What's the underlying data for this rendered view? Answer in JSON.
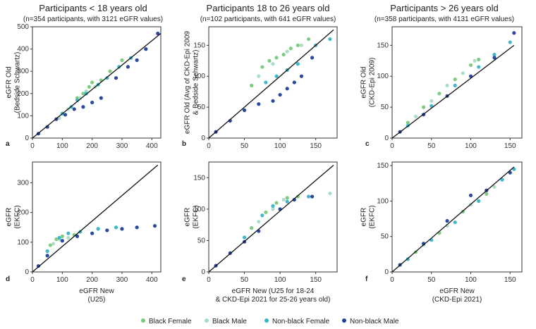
{
  "columns": [
    {
      "title": "Participants < 18 years old",
      "subtitle": "(n=354 participants, with 3121 eGFR values)"
    },
    {
      "title": "Participants 18 to 26 years old",
      "subtitle": "(n=102 participants, with 641 eGFR values)"
    },
    {
      "title": "Participants > 26 years old",
      "subtitle": "(n=358 participants, with 4131 eGFR values)"
    }
  ],
  "legend": [
    {
      "label": "Black Female",
      "color": "#78c87a"
    },
    {
      "label": "Black Male",
      "color": "#a7dcc4"
    },
    {
      "label": "Non-black Female",
      "color": "#37b3c6"
    },
    {
      "label": "Non-black Male",
      "color": "#1f3f9a"
    }
  ],
  "chart_data": [
    {
      "letter": "a",
      "type": "scatter",
      "ylabel": [
        "eGFR Old",
        "(Bedside Schwartz)"
      ],
      "xlabel": [],
      "xlim": [
        0,
        430
      ],
      "ylim": [
        0,
        500
      ],
      "xticks": [
        0,
        100,
        200,
        300,
        400
      ],
      "yticks": [
        0,
        100,
        200,
        300,
        400,
        500
      ],
      "series": [
        {
          "name": "Black Female",
          "points": [
            [
              150,
              180
            ],
            [
              170,
              200
            ],
            [
              190,
              230
            ],
            [
              200,
              250
            ],
            [
              230,
              260
            ],
            [
              260,
              300
            ],
            [
              300,
              350
            ]
          ]
        },
        {
          "name": "Black Male",
          "points": [
            [
              90,
              90
            ],
            [
              120,
              130
            ],
            [
              160,
              180
            ],
            [
              180,
              210
            ],
            [
              210,
              230
            ]
          ]
        },
        {
          "name": "Non-black Female",
          "points": [
            [
              100,
              110
            ],
            [
              130,
              140
            ],
            [
              150,
              170
            ],
            [
              180,
              200
            ],
            [
              220,
              240
            ],
            [
              250,
              270
            ],
            [
              290,
              320
            ],
            [
              330,
              360
            ]
          ]
        },
        {
          "name": "Non-black Male",
          "points": [
            [
              20,
              20
            ],
            [
              50,
              50
            ],
            [
              80,
              85
            ],
            [
              110,
              105
            ],
            [
              140,
              130
            ],
            [
              170,
              140
            ],
            [
              200,
              160
            ],
            [
              230,
              180
            ],
            [
              280,
              270
            ],
            [
              320,
              320
            ],
            [
              350,
              350
            ],
            [
              380,
              400
            ],
            [
              420,
              470
            ]
          ]
        }
      ],
      "identity_line": [
        [
          0,
          0
        ],
        [
          430,
          470
        ]
      ]
    },
    {
      "letter": "b",
      "type": "scatter",
      "ylabel": [
        "eGFR Old (Avg of CKD-Epi 2009",
        "& Bedside Schwartz)"
      ],
      "xlabel": [],
      "xlim": [
        0,
        180
      ],
      "ylim": [
        0,
        180
      ],
      "xticks": [
        0,
        50,
        100,
        150
      ],
      "yticks": [
        0,
        50,
        100,
        150
      ],
      "series": [
        {
          "name": "Black Female",
          "points": [
            [
              60,
              85
            ],
            [
              75,
              115
            ],
            [
              85,
              125
            ],
            [
              95,
              130
            ],
            [
              105,
              135
            ],
            [
              115,
              145
            ],
            [
              125,
              150
            ],
            [
              140,
              160
            ]
          ]
        },
        {
          "name": "Black Male",
          "points": [
            [
              70,
              100
            ],
            [
              90,
              120
            ],
            [
              110,
              140
            ],
            [
              130,
              150
            ]
          ]
        },
        {
          "name": "Non-black Female",
          "points": [
            [
              80,
              90
            ],
            [
              95,
              100
            ],
            [
              110,
              110
            ],
            [
              125,
              120
            ],
            [
              150,
              150
            ],
            [
              170,
              160
            ]
          ]
        },
        {
          "name": "Non-black Male",
          "points": [
            [
              10,
              10
            ],
            [
              30,
              28
            ],
            [
              50,
              45
            ],
            [
              70,
              55
            ],
            [
              90,
              60
            ],
            [
              100,
              70
            ],
            [
              110,
              80
            ],
            [
              120,
              90
            ],
            [
              130,
              100
            ],
            [
              145,
              130
            ]
          ]
        }
      ],
      "identity_line": [
        [
          0,
          0
        ],
        [
          175,
          175
        ]
      ]
    },
    {
      "letter": "c",
      "type": "scatter",
      "ylabel": [
        "eGFR Old",
        "(CKD-Epi 2009)"
      ],
      "xlabel": [],
      "xlim": [
        0,
        165
      ],
      "ylim": [
        0,
        180
      ],
      "xticks": [
        0,
        50,
        100,
        150
      ],
      "yticks": [
        0,
        50,
        100,
        150
      ],
      "series": [
        {
          "name": "Black Female",
          "points": [
            [
              20,
              25
            ],
            [
              40,
              50
            ],
            [
              60,
              72
            ],
            [
              80,
              95
            ],
            [
              100,
              118
            ],
            [
              110,
              127
            ]
          ]
        },
        {
          "name": "Black Male",
          "points": [
            [
              30,
              35
            ],
            [
              50,
              60
            ],
            [
              70,
              85
            ],
            [
              90,
              105
            ],
            [
              105,
              125
            ]
          ]
        },
        {
          "name": "Non-black Female",
          "points": [
            [
              20,
              20
            ],
            [
              50,
              52
            ],
            [
              80,
              85
            ],
            [
              110,
              115
            ],
            [
              130,
              135
            ],
            [
              150,
              155
            ]
          ]
        },
        {
          "name": "Non-black Male",
          "points": [
            [
              10,
              10
            ],
            [
              40,
              38
            ],
            [
              70,
              68
            ],
            [
              100,
              100
            ],
            [
              130,
              130
            ],
            [
              155,
              170
            ]
          ]
        }
      ],
      "identity_line": [
        [
          0,
          0
        ],
        [
          155,
          150
        ]
      ]
    },
    {
      "letter": "d",
      "type": "scatter",
      "ylabel": [
        "eGFR",
        "(EKFC)"
      ],
      "xlabel": [
        "eGFR New",
        "(U25)"
      ],
      "xlim": [
        0,
        430
      ],
      "ylim": [
        0,
        370
      ],
      "xticks": [
        0,
        100,
        200,
        300,
        400
      ],
      "yticks": [
        0,
        100,
        200,
        300
      ],
      "series": [
        {
          "name": "Black Female",
          "points": [
            [
              60,
              90
            ],
            [
              80,
              110
            ],
            [
              100,
              120
            ],
            [
              140,
              125
            ]
          ]
        },
        {
          "name": "Black Male",
          "points": [
            [
              70,
              95
            ],
            [
              90,
              110
            ],
            [
              120,
              115
            ]
          ]
        },
        {
          "name": "Non-black Female",
          "points": [
            [
              50,
              70
            ],
            [
              90,
              115
            ],
            [
              120,
              130
            ],
            [
              160,
              135
            ],
            [
              220,
              145
            ],
            [
              280,
              150
            ]
          ]
        },
        {
          "name": "Non-black Male",
          "points": [
            [
              20,
              20
            ],
            [
              50,
              55
            ],
            [
              100,
              105
            ],
            [
              150,
              120
            ],
            [
              200,
              130
            ],
            [
              250,
              140
            ],
            [
              300,
              145
            ],
            [
              350,
              150
            ],
            [
              410,
              155
            ]
          ]
        }
      ],
      "identity_line": [
        [
          0,
          0
        ],
        [
          420,
          360
        ]
      ]
    },
    {
      "letter": "e",
      "type": "scatter",
      "ylabel": [
        "eGFR",
        "(EKFC)"
      ],
      "xlabel": [
        "eGFR New (U25 for 18-24",
        "& CKD-Epi 2021 for 25-26 years old)"
      ],
      "xlim": [
        0,
        180
      ],
      "ylim": [
        0,
        175
      ],
      "xticks": [
        0,
        50,
        100,
        150
      ],
      "yticks": [
        0,
        50,
        100,
        150
      ],
      "series": [
        {
          "name": "Black Female",
          "points": [
            [
              60,
              70
            ],
            [
              80,
              95
            ],
            [
              95,
              110
            ],
            [
              110,
              118
            ],
            [
              125,
              120
            ]
          ]
        },
        {
          "name": "Black Male",
          "points": [
            [
              70,
              80
            ],
            [
              90,
              100
            ],
            [
              105,
              115
            ],
            [
              170,
              125
            ]
          ]
        },
        {
          "name": "Non-black Female",
          "points": [
            [
              50,
              55
            ],
            [
              75,
              90
            ],
            [
              90,
              105
            ],
            [
              110,
              112
            ],
            [
              140,
              120
            ]
          ]
        },
        {
          "name": "Non-black Male",
          "points": [
            [
              10,
              10
            ],
            [
              30,
              30
            ],
            [
              50,
              48
            ],
            [
              70,
              65
            ],
            [
              100,
              100
            ],
            [
              120,
              115
            ],
            [
              145,
              120
            ]
          ]
        }
      ],
      "identity_line": [
        [
          0,
          0
        ],
        [
          175,
          170
        ]
      ]
    },
    {
      "letter": "f",
      "type": "scatter",
      "ylabel": [
        "eGFR",
        "(EKFC)"
      ],
      "xlabel": [
        "eGFR New",
        "(CKD-Epi 2021)"
      ],
      "xlim": [
        0,
        165
      ],
      "ylim": [
        0,
        155
      ],
      "xticks": [
        0,
        50,
        100,
        150
      ],
      "yticks": [
        0,
        50,
        100,
        150
      ],
      "series": [
        {
          "name": "Black Female",
          "points": [
            [
              30,
              28
            ],
            [
              60,
              55
            ],
            [
              90,
              85
            ],
            [
              120,
              110
            ]
          ]
        },
        {
          "name": "Black Male",
          "points": [
            [
              40,
              38
            ],
            [
              70,
              65
            ],
            [
              100,
              95
            ],
            [
              130,
              120
            ]
          ]
        },
        {
          "name": "Non-black Female",
          "points": [
            [
              20,
              18
            ],
            [
              50,
              45
            ],
            [
              80,
              70
            ],
            [
              110,
              100
            ],
            [
              140,
              130
            ],
            [
              155,
              145
            ]
          ]
        },
        {
          "name": "Non-black Male",
          "points": [
            [
              10,
              10
            ],
            [
              40,
              40
            ],
            [
              70,
              72
            ],
            [
              100,
              108
            ],
            [
              120,
              115
            ],
            [
              150,
              140
            ]
          ]
        }
      ],
      "identity_line": [
        [
          0,
          0
        ],
        [
          155,
          148
        ]
      ]
    }
  ]
}
